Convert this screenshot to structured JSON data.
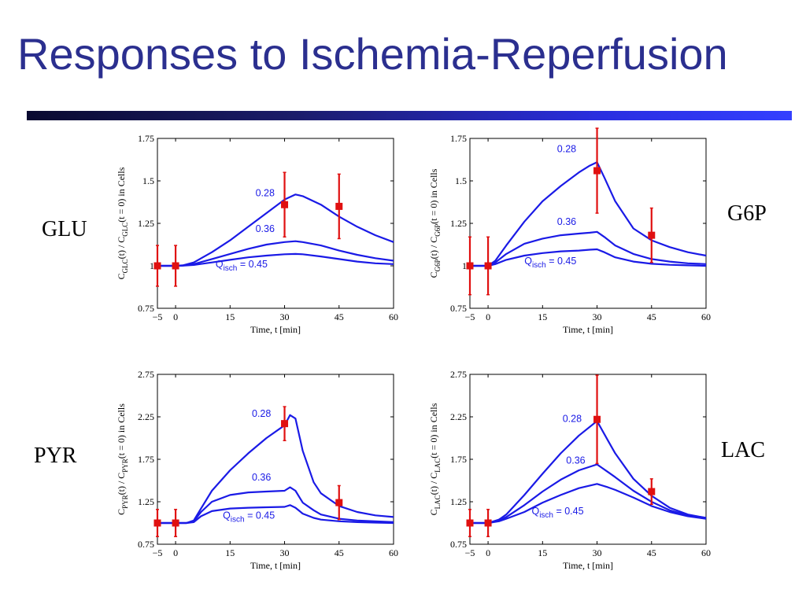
{
  "slide": {
    "title": "Responses to Ischemia-Reperfusion"
  },
  "colors": {
    "title": "#2b2f8f",
    "curve": "#1a1ae6",
    "data_points": "#e01010",
    "annotation": "#1a1ae6"
  },
  "chart_data": [
    {
      "type": "line",
      "label": "GLU",
      "xlabel": "Time, t [min]",
      "ylabel": {
        "main": "C",
        "sub1": "GLC",
        "mid": "(t) / C",
        "sub2": "GLC",
        "end": "(t = 0) in Cells"
      },
      "xlim": [
        -5,
        60
      ],
      "ylim": [
        0.75,
        1.75
      ],
      "xticks": [
        -5,
        0,
        15,
        30,
        45,
        60
      ],
      "yticks": [
        0.75,
        1,
        1.25,
        1.5,
        1.75
      ],
      "ytick_labels": [
        "0.75",
        "1",
        "1.25",
        "1.5",
        "1.75"
      ],
      "series": [
        {
          "name": "0.28",
          "x": [
            -5,
            0,
            2,
            5,
            10,
            15,
            20,
            25,
            30,
            33,
            35,
            40,
            45,
            50,
            55,
            60
          ],
          "y": [
            1,
            1,
            1.003,
            1.02,
            1.08,
            1.15,
            1.23,
            1.31,
            1.39,
            1.42,
            1.41,
            1.36,
            1.29,
            1.23,
            1.18,
            1.14
          ]
        },
        {
          "name": "0.36",
          "x": [
            -5,
            0,
            2,
            5,
            10,
            15,
            20,
            25,
            30,
            33,
            35,
            40,
            45,
            50,
            55,
            60
          ],
          "y": [
            1,
            1,
            1.002,
            1.01,
            1.04,
            1.07,
            1.1,
            1.125,
            1.14,
            1.145,
            1.14,
            1.12,
            1.09,
            1.065,
            1.045,
            1.03
          ]
        },
        {
          "name": "0.45",
          "x": [
            -5,
            0,
            2,
            5,
            10,
            15,
            20,
            25,
            30,
            33,
            35,
            40,
            45,
            50,
            55,
            60
          ],
          "y": [
            1,
            1,
            1.001,
            1.005,
            1.02,
            1.035,
            1.05,
            1.06,
            1.068,
            1.07,
            1.068,
            1.055,
            1.04,
            1.025,
            1.015,
            1.01
          ]
        }
      ],
      "points": [
        {
          "x": -5,
          "y": 1.0,
          "err": 0.12
        },
        {
          "x": 0,
          "y": 1.0,
          "err": 0.12
        },
        {
          "x": 30,
          "y": 1.36,
          "err": 0.19
        },
        {
          "x": 45,
          "y": 1.35,
          "err": 0.19
        }
      ],
      "annotations": [
        {
          "text": "0.28",
          "x": 22,
          "y": 1.41,
          "anchor": "start"
        },
        {
          "text": "0.36",
          "x": 22,
          "y": 1.2,
          "anchor": "start"
        },
        {
          "text": "0.45",
          "x": 11,
          "y": 0.99,
          "anchor": "start",
          "q": true
        }
      ]
    },
    {
      "type": "line",
      "label": "G6P",
      "xlabel": "Time, t [min]",
      "ylabel": {
        "main": "C",
        "sub1": "G6P",
        "mid": "(t) / C",
        "sub2": "G6P",
        "end": "(t = 0) in Cells"
      },
      "xlim": [
        -5,
        60
      ],
      "ylim": [
        0.75,
        1.75
      ],
      "xticks": [
        -5,
        0,
        15,
        30,
        45,
        60
      ],
      "yticks": [
        0.75,
        1,
        1.25,
        1.5,
        1.75
      ],
      "ytick_labels": [
        "0.75",
        "1",
        "1.25",
        "1.5",
        "1.75"
      ],
      "series": [
        {
          "name": "0.28",
          "x": [
            -5,
            0,
            2,
            5,
            10,
            15,
            20,
            25,
            28,
            30,
            32,
            35,
            40,
            45,
            50,
            55,
            60
          ],
          "y": [
            1,
            1,
            1.03,
            1.12,
            1.26,
            1.38,
            1.47,
            1.55,
            1.59,
            1.61,
            1.52,
            1.38,
            1.22,
            1.15,
            1.11,
            1.08,
            1.06
          ]
        },
        {
          "name": "0.36",
          "x": [
            -5,
            0,
            2,
            5,
            10,
            15,
            20,
            25,
            28,
            30,
            32,
            35,
            40,
            45,
            50,
            55,
            60
          ],
          "y": [
            1,
            1,
            1.02,
            1.07,
            1.13,
            1.16,
            1.18,
            1.19,
            1.195,
            1.2,
            1.17,
            1.12,
            1.07,
            1.04,
            1.025,
            1.015,
            1.01
          ]
        },
        {
          "name": "0.45",
          "x": [
            -5,
            0,
            2,
            5,
            10,
            15,
            20,
            25,
            28,
            30,
            32,
            35,
            40,
            45,
            50,
            55,
            60
          ],
          "y": [
            1,
            1,
            1.01,
            1.035,
            1.06,
            1.075,
            1.085,
            1.09,
            1.095,
            1.097,
            1.08,
            1.05,
            1.025,
            1.012,
            1.006,
            1.003,
            1.0
          ]
        }
      ],
      "points": [
        {
          "x": -5,
          "y": 1.0,
          "err": 0.17
        },
        {
          "x": 0,
          "y": 1.0,
          "err": 0.17
        },
        {
          "x": 30,
          "y": 1.56,
          "err": 0.25
        },
        {
          "x": 45,
          "y": 1.18,
          "err": 0.16
        }
      ],
      "annotations": [
        {
          "text": "0.28",
          "x": 19,
          "y": 1.67,
          "anchor": "start"
        },
        {
          "text": "0.36",
          "x": 19,
          "y": 1.24,
          "anchor": "start"
        },
        {
          "text": "0.45",
          "x": 10,
          "y": 1.01,
          "anchor": "start",
          "q": true
        }
      ]
    },
    {
      "type": "line",
      "label": "PYR",
      "xlabel": "Time, t [min]",
      "ylabel": {
        "main": "C",
        "sub1": "PYR",
        "mid": "(t) / C",
        "sub2": "PYR",
        "end": "(t = 0) in Cells"
      },
      "xlim": [
        -5,
        60
      ],
      "ylim": [
        0.75,
        2.75
      ],
      "xticks": [
        -5,
        0,
        15,
        30,
        45,
        60
      ],
      "yticks": [
        0.75,
        1.25,
        1.75,
        2.25,
        2.75
      ],
      "ytick_labels": [
        "0.75",
        "1.25",
        "1.75",
        "2.25",
        "2.75"
      ],
      "series": [
        {
          "name": "0.28",
          "x": [
            -5,
            0,
            3,
            5,
            7,
            10,
            15,
            20,
            25,
            30,
            31.5,
            33,
            35,
            38,
            40,
            45,
            50,
            55,
            60
          ],
          "y": [
            1,
            1,
            1.0,
            1.03,
            1.17,
            1.38,
            1.62,
            1.82,
            2.0,
            2.15,
            2.27,
            2.23,
            1.85,
            1.48,
            1.35,
            1.2,
            1.13,
            1.09,
            1.07
          ]
        },
        {
          "name": "0.36",
          "x": [
            -5,
            0,
            3,
            5,
            7,
            10,
            15,
            20,
            25,
            30,
            31.5,
            33,
            35,
            38,
            40,
            45,
            50,
            55,
            60
          ],
          "y": [
            1,
            1,
            1.0,
            1.02,
            1.13,
            1.25,
            1.33,
            1.36,
            1.37,
            1.38,
            1.42,
            1.38,
            1.24,
            1.15,
            1.1,
            1.05,
            1.03,
            1.02,
            1.01
          ]
        },
        {
          "name": "0.45",
          "x": [
            -5,
            0,
            3,
            5,
            7,
            10,
            15,
            20,
            25,
            30,
            31.5,
            33,
            35,
            38,
            40,
            45,
            50,
            55,
            60
          ],
          "y": [
            1,
            1,
            1.0,
            1.01,
            1.08,
            1.14,
            1.17,
            1.18,
            1.185,
            1.19,
            1.21,
            1.18,
            1.11,
            1.06,
            1.04,
            1.02,
            1.01,
            1.005,
            1.0
          ]
        }
      ],
      "points": [
        {
          "x": -5,
          "y": 1.0,
          "err": 0.16
        },
        {
          "x": 0,
          "y": 1.0,
          "err": 0.16
        },
        {
          "x": 30,
          "y": 2.17,
          "err": 0.2
        },
        {
          "x": 45,
          "y": 1.24,
          "err": 0.2
        }
      ],
      "annotations": [
        {
          "text": "0.28",
          "x": 21,
          "y": 2.25,
          "anchor": "start"
        },
        {
          "text": "0.36",
          "x": 21,
          "y": 1.5,
          "anchor": "start"
        },
        {
          "text": "0.45",
          "x": 13,
          "y": 1.05,
          "anchor": "start",
          "q": true
        }
      ]
    },
    {
      "type": "line",
      "label": "LAC",
      "xlabel": "Time, t [min]",
      "ylabel": {
        "main": "C",
        "sub1": "LAC",
        "mid": "(t) / C",
        "sub2": "LAC",
        "end": "(t = 0) in Cells"
      },
      "xlim": [
        -5,
        60
      ],
      "ylim": [
        0.75,
        2.75
      ],
      "xticks": [
        -5,
        0,
        15,
        30,
        45,
        60
      ],
      "yticks": [
        0.75,
        1.25,
        1.75,
        2.25,
        2.75
      ],
      "ytick_labels": [
        "0.75",
        "1.25",
        "1.75",
        "2.25",
        "2.75"
      ],
      "series": [
        {
          "name": "0.28",
          "x": [
            -5,
            0,
            3,
            5,
            10,
            15,
            20,
            25,
            30,
            33,
            35,
            40,
            45,
            50,
            55,
            60
          ],
          "y": [
            1,
            1,
            1.04,
            1.1,
            1.33,
            1.58,
            1.82,
            2.03,
            2.2,
            1.97,
            1.82,
            1.52,
            1.32,
            1.18,
            1.1,
            1.06
          ]
        },
        {
          "name": "0.36",
          "x": [
            -5,
            0,
            3,
            5,
            10,
            15,
            20,
            25,
            30,
            33,
            35,
            40,
            45,
            50,
            55,
            60
          ],
          "y": [
            1,
            1,
            1.03,
            1.07,
            1.21,
            1.37,
            1.51,
            1.62,
            1.69,
            1.6,
            1.54,
            1.38,
            1.25,
            1.15,
            1.09,
            1.06
          ]
        },
        {
          "name": "0.45",
          "x": [
            -5,
            0,
            3,
            5,
            10,
            15,
            20,
            25,
            30,
            33,
            35,
            40,
            45,
            50,
            55,
            60
          ],
          "y": [
            1,
            1,
            1.02,
            1.05,
            1.13,
            1.24,
            1.33,
            1.41,
            1.46,
            1.42,
            1.39,
            1.3,
            1.2,
            1.13,
            1.08,
            1.05
          ]
        }
      ],
      "points": [
        {
          "x": -5,
          "y": 1.0,
          "err": 0.16
        },
        {
          "x": 0,
          "y": 1.0,
          "err": 0.16
        },
        {
          "x": 30,
          "y": 2.22,
          "err": 0.52
        },
        {
          "x": 45,
          "y": 1.37,
          "err": 0.15
        }
      ],
      "annotations": [
        {
          "text": "0.28",
          "x": 20.5,
          "y": 2.19,
          "anchor": "start"
        },
        {
          "text": "0.36",
          "x": 21.5,
          "y": 1.7,
          "anchor": "start"
        },
        {
          "text": "0.45",
          "x": 12,
          "y": 1.1,
          "anchor": "start",
          "q": true
        }
      ]
    }
  ]
}
